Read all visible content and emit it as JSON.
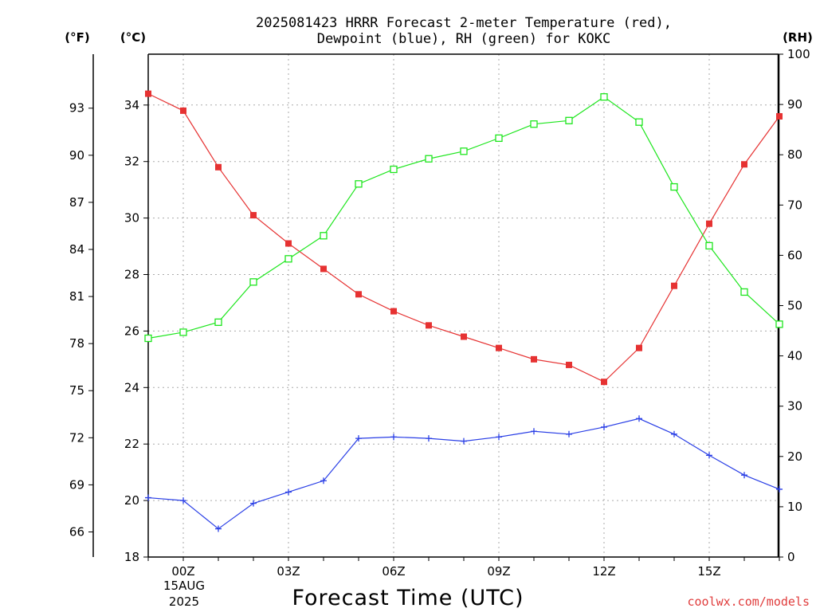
{
  "title_lines": [
    "2025081423 HRRR Forecast 2-meter Temperature (red),",
    "Dewpoint (blue), RH (green) for KOKC"
  ],
  "credit": "coolwx.com/models",
  "chart_data": {
    "type": "line",
    "title": "2025081423 HRRR Forecast 2-meter Temperature (red), Dewpoint (blue), RH (green) for KOKC",
    "xlabel": "Forecast Time (UTC)",
    "x_hours_utc": [
      "23Z",
      "00Z",
      "01Z",
      "02Z",
      "03Z",
      "04Z",
      "05Z",
      "06Z",
      "07Z",
      "08Z",
      "09Z",
      "10Z",
      "11Z",
      "12Z",
      "13Z",
      "14Z",
      "15Z",
      "16Z",
      "17Z"
    ],
    "x_tick_labels": [
      "00Z",
      "03Z",
      "06Z",
      "09Z",
      "12Z",
      "15Z"
    ],
    "x_date_lines": [
      "15AUG",
      "2025"
    ],
    "left_axis_f": {
      "unit_label": "(°F)",
      "ticks": [
        66,
        69,
        72,
        75,
        78,
        81,
        84,
        87,
        90,
        93
      ]
    },
    "left_axis_c": {
      "unit_label": "(°C)",
      "range": [
        18,
        35.8
      ],
      "ticks": [
        18,
        20,
        22,
        24,
        26,
        28,
        30,
        32,
        34
      ]
    },
    "right_axis_rh": {
      "unit_label": "(RH)",
      "range": [
        0,
        100
      ],
      "ticks": [
        0,
        10,
        20,
        30,
        40,
        50,
        60,
        70,
        80,
        90,
        100
      ]
    },
    "grid": true,
    "series": [
      {
        "key": "temperature",
        "axis": "c",
        "color": "#e63232",
        "marker": "filled-square",
        "values": [
          34.4,
          33.8,
          31.8,
          30.1,
          29.1,
          28.2,
          27.3,
          26.7,
          26.2,
          25.8,
          25.4,
          25.0,
          24.8,
          24.2,
          25.4,
          27.6,
          29.8,
          31.9,
          33.6
        ]
      },
      {
        "key": "dewpoint",
        "axis": "c",
        "color": "#2a3fe6",
        "marker": "plus",
        "values": [
          20.1,
          20.0,
          19.0,
          19.9,
          20.3,
          20.7,
          22.2,
          22.25,
          22.2,
          22.1,
          22.25,
          22.45,
          22.35,
          22.6,
          22.9,
          22.35,
          21.6,
          20.9,
          20.4
        ]
      },
      {
        "key": "rh",
        "axis": "rh",
        "color": "#1ee61e",
        "marker": "open-square",
        "values": [
          43.5,
          44.7,
          46.7,
          54.7,
          59.3,
          63.9,
          74.2,
          77.1,
          79.2,
          80.7,
          83.3,
          86.1,
          86.8,
          91.5,
          86.5,
          73.6,
          61.9,
          52.7,
          46.3
        ]
      }
    ]
  }
}
